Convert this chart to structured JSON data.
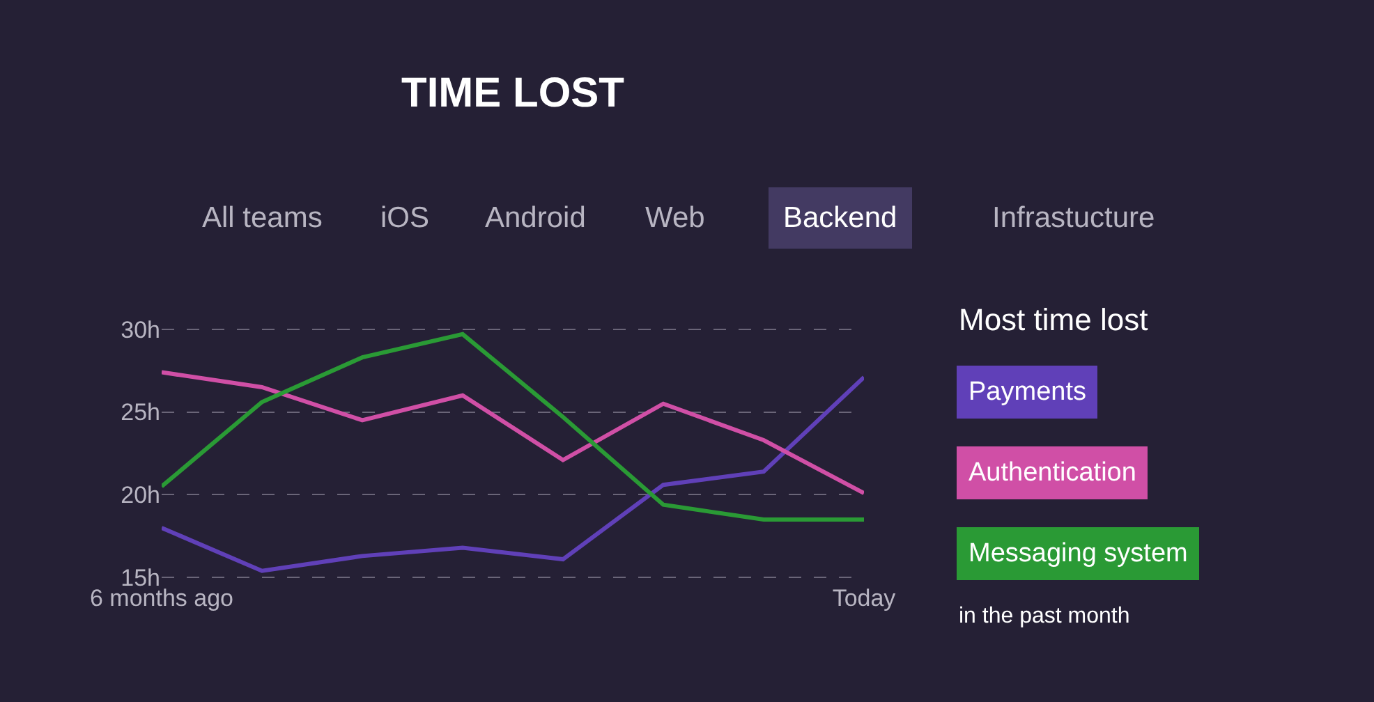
{
  "chart_data": {
    "type": "line",
    "title": "TIME LOST",
    "legend_title": "Most time lost",
    "annotations": [
      "All teams",
      "iOS",
      "Android",
      "Web",
      "Backend",
      "Infrastucture",
      "in the past month"
    ],
    "categories": [
      "6 months ago",
      null,
      null,
      null,
      null,
      null,
      null,
      "Today"
    ],
    "ylim": [
      14.8,
      30.2
    ],
    "yticks": [
      {
        "value": 15,
        "label": "15h"
      },
      {
        "value": 20,
        "label": "20h"
      },
      {
        "value": 25,
        "label": "25h"
      },
      {
        "value": 30,
        "label": "30h"
      }
    ],
    "series": [
      {
        "name": "Payments",
        "color": "#6040b8",
        "values": [
          18.0,
          15.4,
          16.3,
          16.8,
          16.1,
          20.6,
          21.4,
          27.1
        ]
      },
      {
        "name": "Authentication",
        "color": "#d04fa6",
        "values": [
          27.4,
          26.5,
          24.5,
          26.0,
          22.1,
          25.5,
          23.3,
          20.1
        ]
      },
      {
        "name": "Messaging system",
        "color": "#2a9a35",
        "values": [
          20.5,
          25.6,
          28.3,
          29.7,
          24.7,
          19.4,
          18.5,
          18.5
        ]
      }
    ],
    "grid": "y",
    "legend": "right",
    "marker": "none",
    "line_style": "solid"
  }
}
